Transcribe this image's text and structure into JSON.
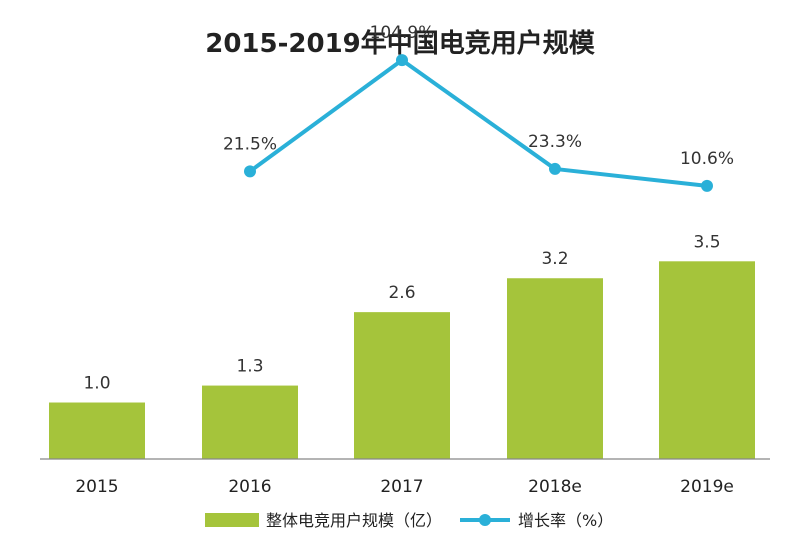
{
  "chart_data": {
    "type": "bar",
    "title": "2015-2019年中国电竞用户规模",
    "categories": [
      "2015",
      "2016",
      "2017",
      "2018e",
      "2019e"
    ],
    "series": [
      {
        "name": "整体电竞用户规模（亿）",
        "type": "bar",
        "color": "#a5c43b",
        "values": [
          1.0,
          1.3,
          2.6,
          3.2,
          3.5
        ],
        "labels": [
          "1.0",
          "1.3",
          "2.6",
          "3.2",
          "3.5"
        ]
      },
      {
        "name": "增长率（%）",
        "type": "line",
        "color": "#2ab0d8",
        "values": [
          null,
          21.5,
          104.9,
          23.3,
          10.6
        ],
        "labels": [
          "",
          "21.5%",
          "104.9%",
          "23.3%",
          "10.6%"
        ]
      }
    ],
    "ylim": [
      0,
      4
    ],
    "y2lim": [
      0,
      120
    ],
    "grid": false,
    "legend": "bottom"
  }
}
